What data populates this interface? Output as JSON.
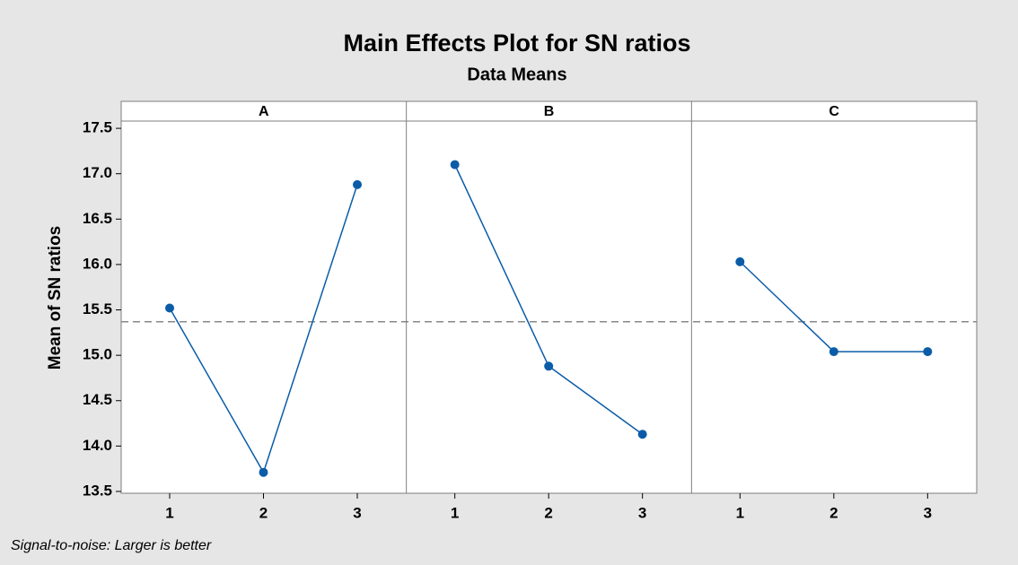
{
  "chart_data": {
    "type": "line",
    "title": "Main Effects Plot for SN ratios",
    "subtitle": "Data Means",
    "ylabel": "Mean of SN ratios",
    "note": "Signal-to-noise: Larger is better",
    "color": "#0b5ca8",
    "reference_line": 15.37,
    "ylim": [
      13.48,
      17.58
    ],
    "yticks": [
      13.5,
      {
        "value": 14,
        "label": "14.0"
      },
      14.5,
      {
        "value": 15,
        "label": "15.0"
      },
      15.5,
      {
        "value": 16,
        "label": "16.0"
      },
      16.5,
      {
        "value": 17,
        "label": "17.0"
      },
      17.5
    ],
    "panels": [
      {
        "name": "A",
        "categories": [
          "1",
          "2",
          "3"
        ],
        "values": [
          15.52,
          13.71,
          16.88
        ]
      },
      {
        "name": "B",
        "categories": [
          "1",
          "2",
          "3"
        ],
        "values": [
          17.1,
          14.88,
          14.13
        ]
      },
      {
        "name": "C",
        "categories": [
          "1",
          "2",
          "3"
        ],
        "values": [
          16.03,
          15.04,
          15.04
        ]
      }
    ]
  }
}
